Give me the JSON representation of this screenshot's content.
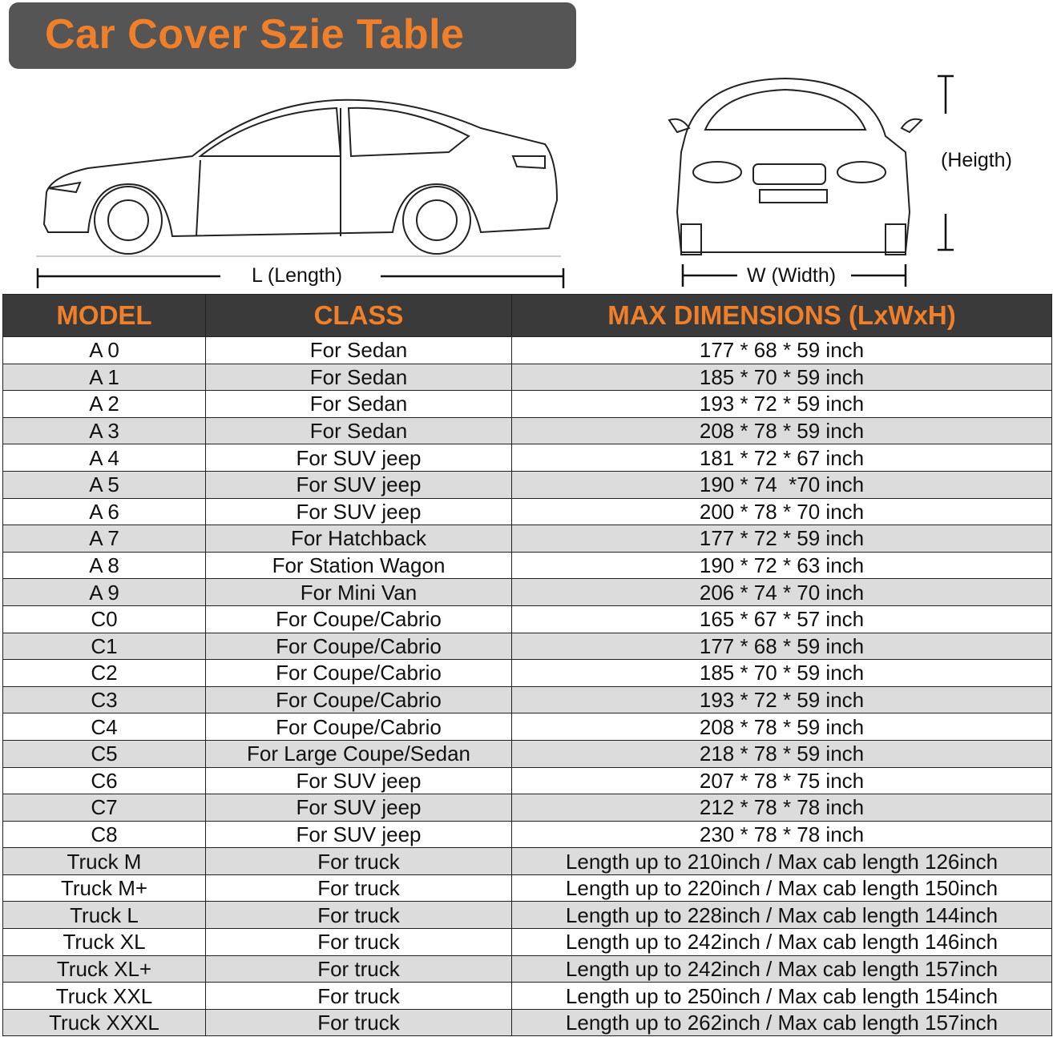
{
  "title": "Car Cover Szie Table",
  "labels": {
    "length": "L (Length)",
    "width": "W (Width)",
    "height": "(Heigth)"
  },
  "colors": {
    "accent": "#f07f2a",
    "header_bg": "#3a3a3a",
    "title_bg": "#555555",
    "alt_row": "#dcdcdc"
  },
  "table": {
    "headers": [
      "MODEL",
      "CLASS",
      "MAX DIMENSIONS (LxWxH)"
    ],
    "rows": [
      [
        "A 0",
        "For Sedan",
        "177 * 68 * 59 inch"
      ],
      [
        "A 1",
        "For Sedan",
        "185 * 70 * 59 inch"
      ],
      [
        "A 2",
        "For Sedan",
        "193 * 72 * 59 inch"
      ],
      [
        "A 3",
        "For Sedan",
        "208 * 78 * 59 inch"
      ],
      [
        "A 4",
        "For SUV jeep",
        "181 * 72 * 67 inch"
      ],
      [
        "A 5",
        "For SUV jeep",
        "190 * 74  *70 inch"
      ],
      [
        "A 6",
        "For SUV jeep",
        "200 * 78 * 70 inch"
      ],
      [
        "A 7",
        "For Hatchback",
        "177 * 72 * 59 inch"
      ],
      [
        "A 8",
        "For Station Wagon",
        "190 * 72 * 63 inch"
      ],
      [
        "A 9",
        "For Mini Van",
        "206 * 74 * 70 inch"
      ],
      [
        "C0",
        "For Coupe/Cabrio",
        "165 * 67 * 57 inch"
      ],
      [
        "C1",
        "For Coupe/Cabrio",
        "177 * 68 * 59 inch"
      ],
      [
        "C2",
        "For Coupe/Cabrio",
        "185 * 70 * 59 inch"
      ],
      [
        "C3",
        "For Coupe/Cabrio",
        "193 * 72 * 59 inch"
      ],
      [
        "C4",
        "For Coupe/Cabrio",
        "208 * 78 * 59 inch"
      ],
      [
        "C5",
        "For Large Coupe/Sedan",
        "218 * 78 * 59 inch"
      ],
      [
        "C6",
        "For SUV jeep",
        "207 * 78 * 75 inch"
      ],
      [
        "C7",
        "For SUV jeep",
        "212 * 78 * 78 inch"
      ],
      [
        "C8",
        "For SUV jeep",
        "230 * 78 * 78 inch"
      ],
      [
        "Truck M",
        "For truck",
        "Length up to 210inch / Max cab length 126inch"
      ],
      [
        "Truck M+",
        "For truck",
        "Length up to 220inch / Max cab length 150inch"
      ],
      [
        "Truck L",
        "For truck",
        "Length up to 228inch / Max cab length 144inch"
      ],
      [
        "Truck XL",
        "For truck",
        "Length up to 242inch / Max cab length 146inch"
      ],
      [
        "Truck XL+",
        "For truck",
        "Length up to 242inch / Max cab length 157inch"
      ],
      [
        "Truck XXL",
        "For truck",
        "Length up to 250inch / Max cab length 154inch"
      ],
      [
        "Truck XXXL",
        "For truck",
        "Length up to 262inch / Max cab length 157inch"
      ]
    ]
  }
}
